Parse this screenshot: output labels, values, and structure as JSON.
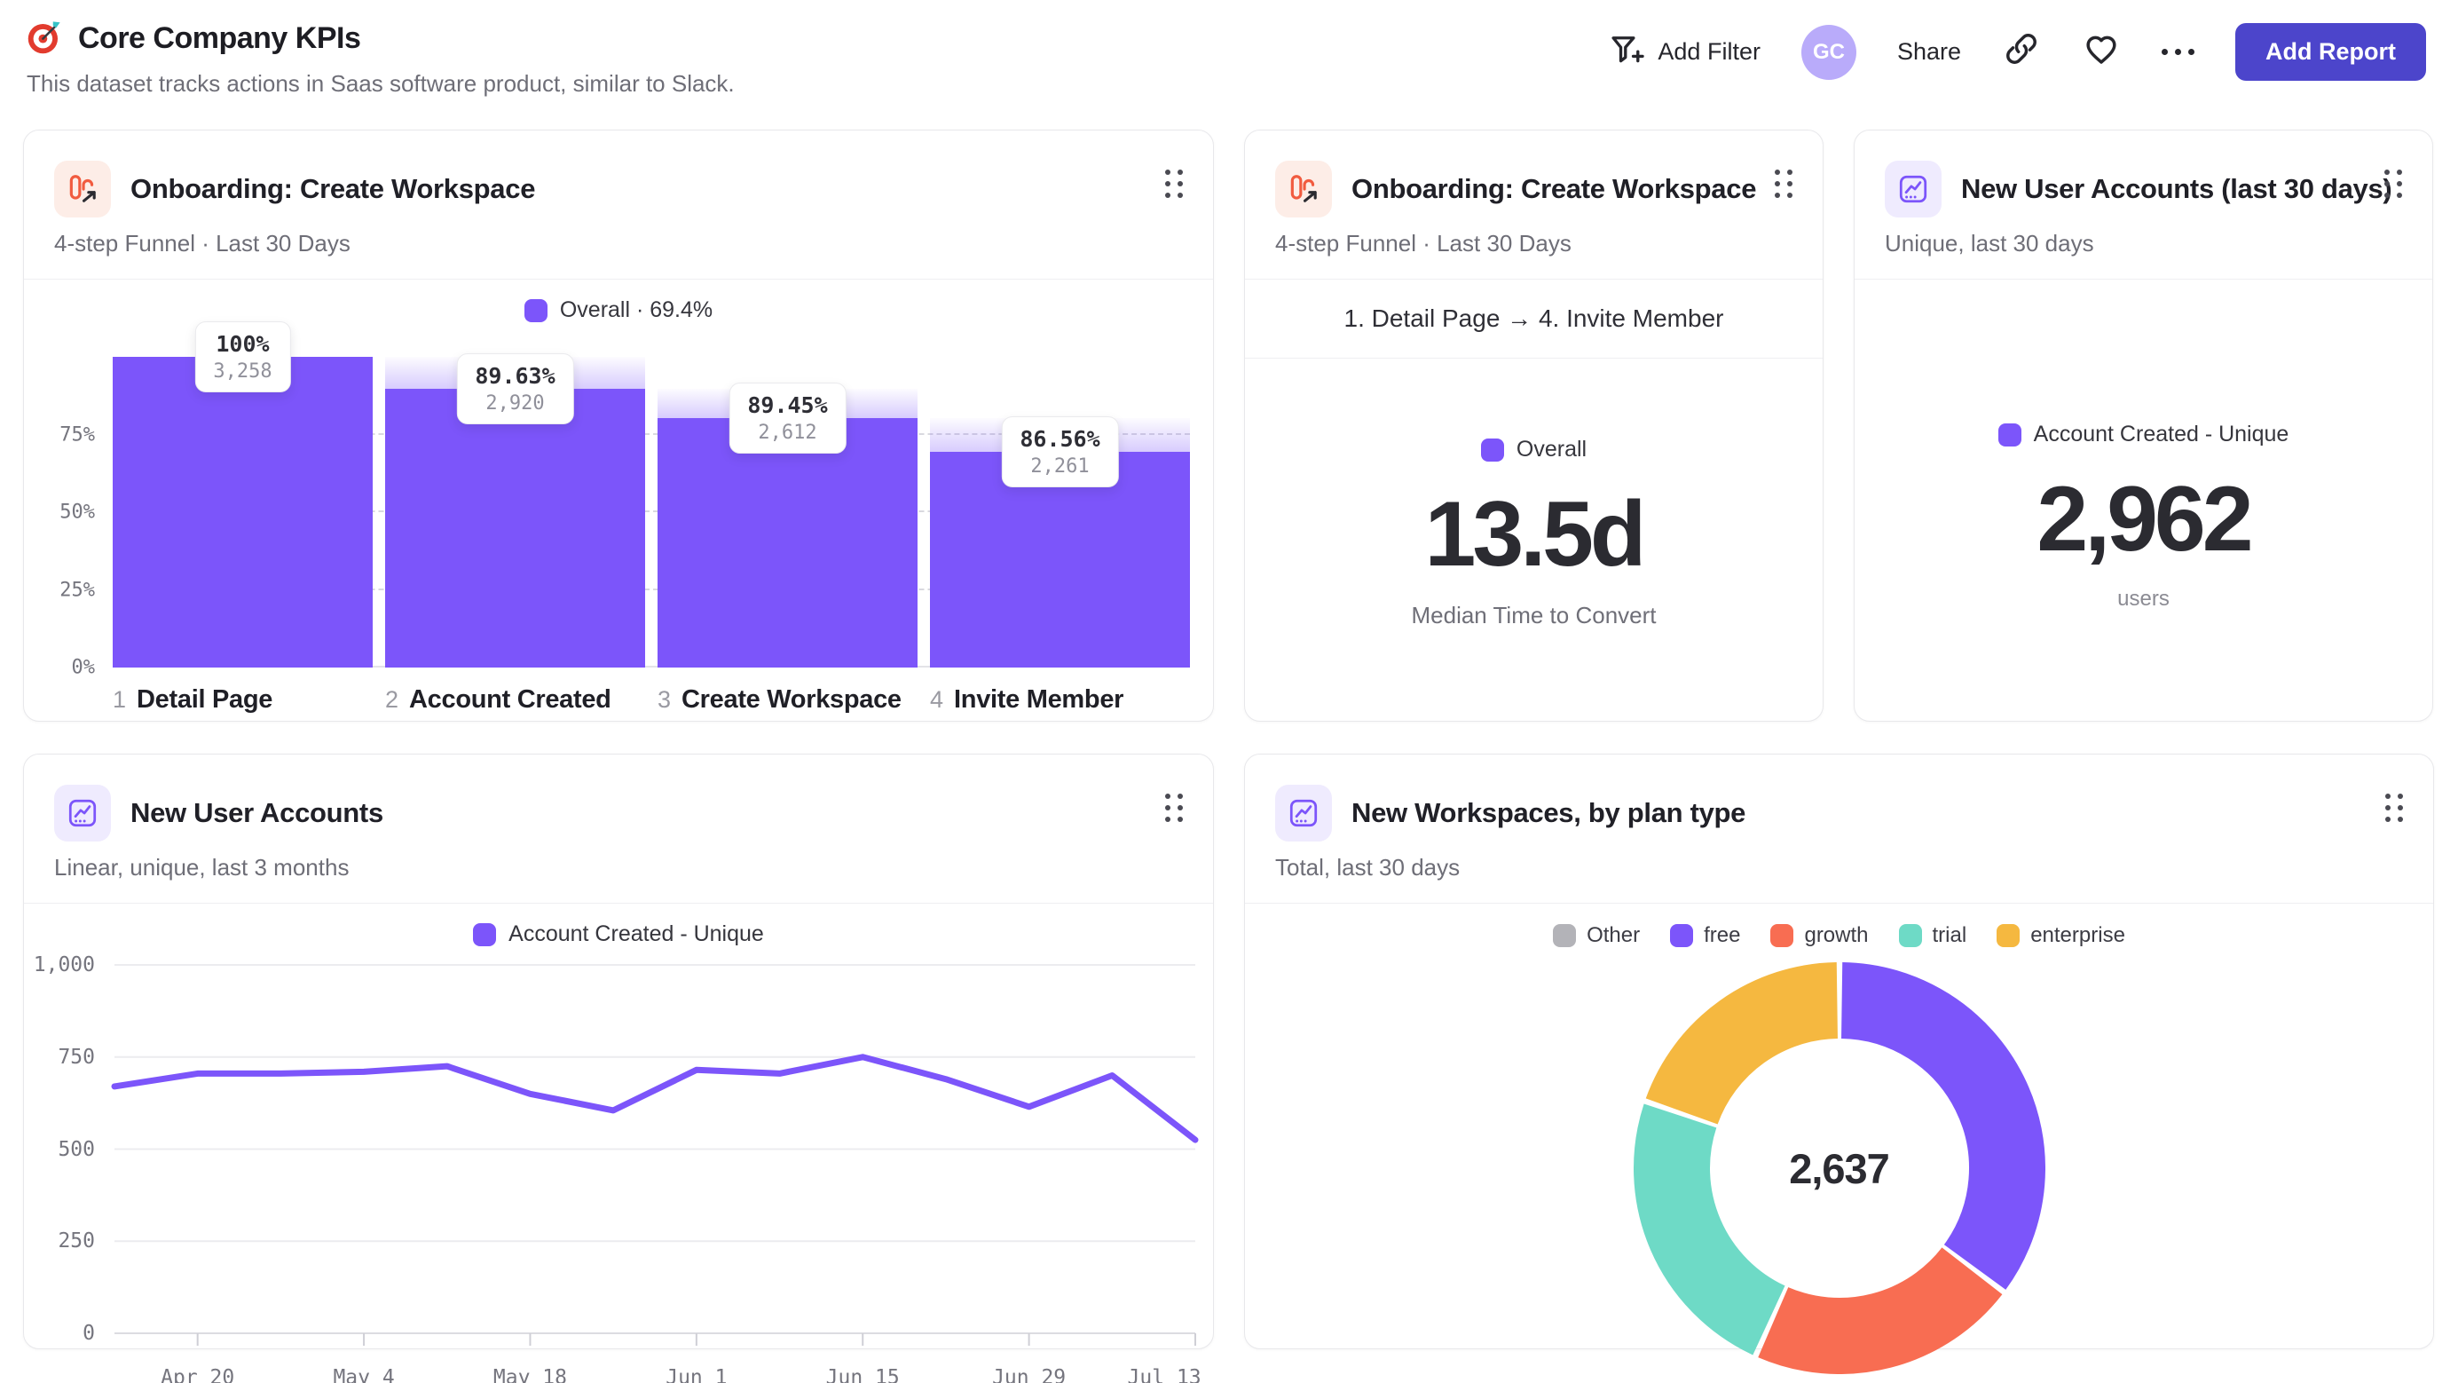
{
  "header": {
    "title": "Core Company KPIs",
    "title_icon": "dart-target-icon",
    "subtitle": "This dataset tracks actions in Saas software product, similar to Slack.",
    "actions": {
      "add_filter": "Add Filter",
      "add_filter_icon": "filter-plus-icon",
      "avatar": "GC",
      "share": "Share",
      "link_icon": "link-icon",
      "favorite_icon": "heart-icon",
      "more_icon": "ellipsis-icon",
      "add_report": "Add Report"
    }
  },
  "colors": {
    "accent_purple": "#7C55FA",
    "coral": "#F86D52",
    "teal": "#6EDAC6",
    "amber": "#F5B840",
    "gray_segment": "#B3B3B8",
    "primary_button": "#4C45CB",
    "funnel_icon_orange": "#F15B3F"
  },
  "chart_data": [
    {
      "type": "funnel",
      "title": "Onboarding: Create Workspace",
      "subtitle": "4-step Funnel · Last 30 Days",
      "legend_label": "Overall · 69.4%",
      "yticks": [
        "0%",
        "25%",
        "50%",
        "75%"
      ],
      "ylim_pct": [
        0,
        100
      ],
      "grid": "dashed",
      "steps": [
        {
          "step": "1",
          "label": "Detail Page",
          "conv_label": "100%",
          "count_label": "3,258",
          "count": 3258,
          "overall_pct": 100
        },
        {
          "step": "2",
          "label": "Account Created",
          "conv_label": "89.63%",
          "count_label": "2,920",
          "count": 2920,
          "overall_pct": 89.63
        },
        {
          "step": "3",
          "label": "Create Workspace",
          "conv_label": "89.45%",
          "count_label": "2,612",
          "count": 2612,
          "overall_pct": 80.17
        },
        {
          "step": "4",
          "label": "Invite Member",
          "conv_label": "86.56%",
          "count_label": "2,261",
          "count": 2261,
          "overall_pct": 69.4
        }
      ]
    },
    {
      "type": "metric",
      "title": "Onboarding: Create Workspace",
      "subtitle": "4-step Funnel · Last 30 Days",
      "range_label": "1. Detail Page → 4. Invite Member",
      "legend_label": "Overall",
      "value": "13.5d",
      "caption": "Median Time to Convert"
    },
    {
      "type": "metric",
      "title": "New User Accounts (last 30 days)",
      "subtitle": "Unique, last 30 days",
      "legend_label": "Account Created - Unique",
      "value": "2,962",
      "caption": "users"
    },
    {
      "type": "line",
      "title": "New User Accounts",
      "subtitle": "Linear, unique, last 3 months",
      "legend_label": "Account Created - Unique",
      "series": [
        {
          "name": "Account Created - Unique",
          "values": [
            670,
            705,
            705,
            710,
            725,
            650,
            605,
            715,
            705,
            750,
            690,
            615,
            700,
            525
          ]
        }
      ],
      "x_tick_labels": [
        "Apr 20",
        "May 4",
        "May 18",
        "Jun 1",
        "Jun 15",
        "Jun 29",
        "Jul 13"
      ],
      "ylim": [
        0,
        1000
      ],
      "yticks": [
        {
          "v": 0,
          "label": "0"
        },
        {
          "v": 250,
          "label": "250"
        },
        {
          "v": 500,
          "label": "500"
        },
        {
          "v": 750,
          "label": "750"
        },
        {
          "v": 1000,
          "label": "1,000"
        }
      ],
      "grid": "solid",
      "legend_position": "top"
    },
    {
      "type": "donut",
      "title": "New Workspaces, by plan type",
      "subtitle": "Total, last 30 days",
      "total_label": "2,637",
      "total": 2637,
      "segments": [
        {
          "label": "Other",
          "value": 0,
          "color": "#B3B3B8"
        },
        {
          "label": "free",
          "value": 930,
          "color": "#7C55FA"
        },
        {
          "label": "growth",
          "value": 565,
          "color": "#F86D52"
        },
        {
          "label": "trial",
          "value": 622,
          "color": "#6EDAC6"
        },
        {
          "label": "enterprise",
          "value": 520,
          "color": "#F5B840"
        }
      ],
      "legend_position": "top"
    }
  ]
}
